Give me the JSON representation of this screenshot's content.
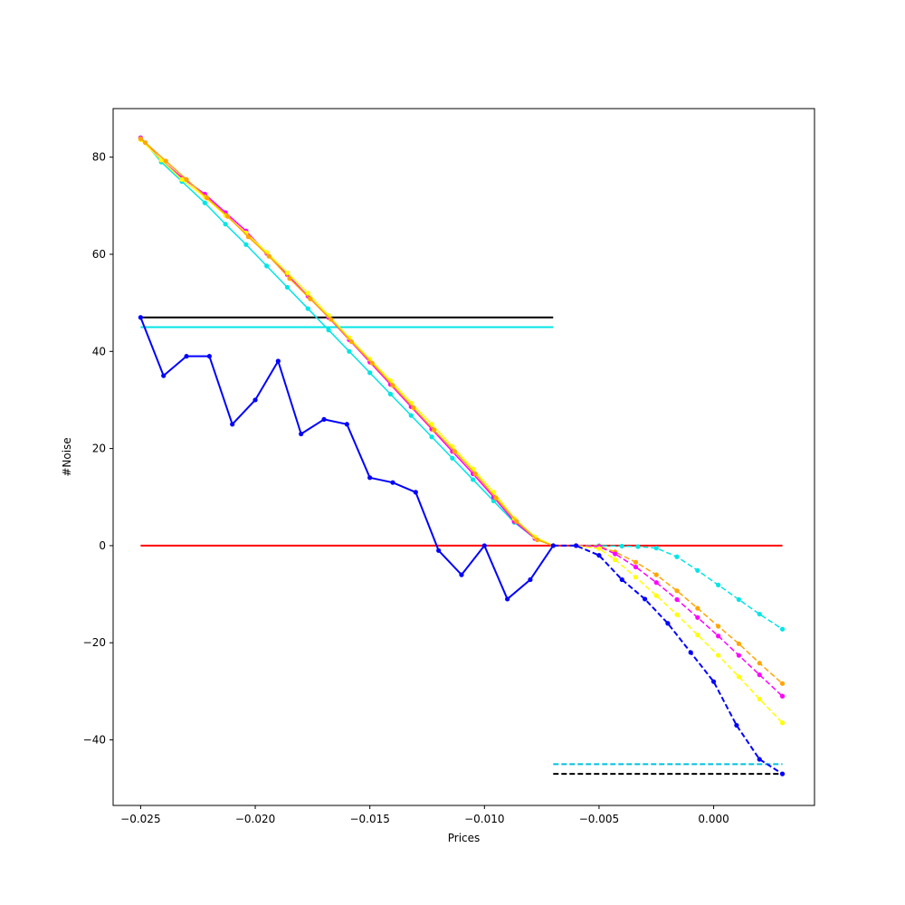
{
  "chart_data": {
    "type": "line",
    "title": "",
    "xlabel": "Prices",
    "ylabel": "#Noise",
    "xlim": [
      -0.0262,
      0.0044
    ],
    "ylim": [
      -53.5,
      90.0
    ],
    "x_ticks": [
      -0.025,
      -0.02,
      -0.015,
      -0.01,
      -0.005,
      0.0
    ],
    "x_tick_labels": [
      "−0.025",
      "−0.020",
      "−0.015",
      "−0.010",
      "−0.005",
      "0.000"
    ],
    "y_ticks": [
      -40,
      -20,
      0,
      20,
      40,
      60,
      80
    ],
    "y_tick_labels": [
      "−40",
      "−20",
      "0",
      "20",
      "40",
      "60",
      "80"
    ],
    "grid": false,
    "legend": "none",
    "series": [
      {
        "color": "#000000",
        "dash": "solid",
        "marker": false,
        "width": 2,
        "x": [
          -0.025,
          -0.007
        ],
        "y": [
          47,
          47
        ]
      },
      {
        "color": "#00e5e5",
        "dash": "solid",
        "marker": false,
        "width": 2,
        "x": [
          -0.025,
          -0.007
        ],
        "y": [
          45,
          45
        ]
      },
      {
        "color": "#ff0000",
        "dash": "solid",
        "marker": false,
        "width": 2,
        "x": [
          -0.025,
          0.003
        ],
        "y": [
          0,
          0
        ]
      },
      {
        "color": "#00c0e0",
        "dash": "dashed",
        "marker": false,
        "width": 2,
        "x": [
          -0.007,
          0.003
        ],
        "y": [
          -45,
          -45
        ]
      },
      {
        "color": "#000000",
        "dash": "dashed",
        "marker": false,
        "width": 2,
        "x": [
          -0.007,
          0.003
        ],
        "y": [
          -47,
          -47
        ]
      },
      {
        "color": "#00e5e5",
        "dash": "solid",
        "marker": true,
        "width": 1.5,
        "x": [
          -0.025,
          -0.0241,
          -0.0232,
          -0.0222,
          -0.0213,
          -0.0204,
          -0.0195,
          -0.0186,
          -0.0177,
          -0.0168,
          -0.0159,
          -0.015,
          -0.0141,
          -0.0132,
          -0.0123,
          -0.0114,
          -0.0105,
          -0.0096,
          -0.0087,
          -0.0078,
          -0.007
        ],
        "y": [
          84,
          79.0,
          75.0,
          70.6,
          66.2,
          62.0,
          57.6,
          53.2,
          48.8,
          44.4,
          40.0,
          35.6,
          31.2,
          26.8,
          22.4,
          18.0,
          13.6,
          9.2,
          4.8,
          1.5,
          0
        ]
      },
      {
        "color": "#ff00ff",
        "dash": "solid",
        "marker": true,
        "width": 1.5,
        "x": [
          -0.025,
          -0.0241,
          -0.0232,
          -0.0222,
          -0.0213,
          -0.0204,
          -0.0195,
          -0.0186,
          -0.0177,
          -0.0168,
          -0.0159,
          -0.015,
          -0.0141,
          -0.0132,
          -0.0123,
          -0.0114,
          -0.0105,
          -0.0096,
          -0.0087,
          -0.0078,
          -0.007
        ],
        "y": [
          84,
          79.4,
          75.8,
          72.4,
          68.6,
          64.8,
          60.2,
          55.8,
          51.4,
          47.0,
          42.4,
          37.8,
          33.2,
          28.6,
          24.0,
          19.4,
          14.8,
          10.0,
          5.0,
          1.5,
          0
        ]
      },
      {
        "color": "#ffff00",
        "dash": "solid",
        "marker": true,
        "width": 1.5,
        "x": [
          -0.025,
          -0.0241,
          -0.0232,
          -0.0222,
          -0.0213,
          -0.0204,
          -0.0195,
          -0.0186,
          -0.0177,
          -0.0168,
          -0.0159,
          -0.015,
          -0.0141,
          -0.0132,
          -0.0123,
          -0.0114,
          -0.0105,
          -0.0096,
          -0.0087,
          -0.0078,
          -0.007
        ],
        "y": [
          83.6,
          79.4,
          75.4,
          71.8,
          68.0,
          64.4,
          60.4,
          56.2,
          52.0,
          47.4,
          42.8,
          38.4,
          34.0,
          29.4,
          25.0,
          20.4,
          15.8,
          11.0,
          5.6,
          1.8,
          0
        ]
      },
      {
        "color": "#ffa500",
        "dash": "solid",
        "marker": true,
        "width": 1.5,
        "x": [
          -0.025,
          -0.0248,
          -0.0239,
          -0.023,
          -0.0221,
          -0.0212,
          -0.0203,
          -0.0194,
          -0.0185,
          -0.0176,
          -0.0167,
          -0.0158,
          -0.0149,
          -0.014,
          -0.0131,
          -0.0122,
          -0.0113,
          -0.0104,
          -0.0095,
          -0.0086,
          -0.0077,
          -0.007
        ],
        "y": [
          83.8,
          83.0,
          79.2,
          75.4,
          71.6,
          67.8,
          63.6,
          59.6,
          55.0,
          50.8,
          46.6,
          42.0,
          37.6,
          33.0,
          28.4,
          23.8,
          19.4,
          14.8,
          9.8,
          5.0,
          1.2,
          0
        ]
      },
      {
        "color": "#0000ff",
        "dash": "solid",
        "marker": true,
        "width": 2,
        "x": [
          -0.025,
          -0.024,
          -0.023,
          -0.022,
          -0.021,
          -0.02,
          -0.019,
          -0.018,
          -0.017,
          -0.016,
          -0.015,
          -0.014,
          -0.013,
          -0.012,
          -0.011,
          -0.01,
          -0.009,
          -0.008,
          -0.007
        ],
        "y": [
          47,
          35,
          39,
          39,
          25,
          30,
          38,
          23,
          26,
          25,
          14,
          13,
          11,
          -1,
          -6,
          0,
          -11,
          -7,
          0
        ]
      },
      {
        "color": "#00e5e5",
        "dash": "dashed",
        "marker": true,
        "width": 1.5,
        "x": [
          -0.007,
          -0.006,
          -0.005,
          -0.004,
          -0.0033,
          -0.0025,
          -0.0016,
          -0.0007,
          0.0002,
          0.0011,
          0.002,
          0.003
        ],
        "y": [
          0,
          0,
          0,
          -0.1,
          -0.2,
          -0.5,
          -2.3,
          -5.1,
          -8.1,
          -11.1,
          -14.1,
          -17.2
        ]
      },
      {
        "color": "#ffa500",
        "dash": "dashed",
        "marker": true,
        "width": 1.5,
        "x": [
          -0.007,
          -0.006,
          -0.005,
          -0.0043,
          -0.0034,
          -0.0025,
          -0.0016,
          -0.0007,
          0.0002,
          0.0011,
          0.002,
          0.003
        ],
        "y": [
          0,
          0,
          -0.1,
          -1.3,
          -3.4,
          -6.0,
          -9.3,
          -12.9,
          -16.6,
          -20.2,
          -24.2,
          -28.4
        ]
      },
      {
        "color": "#ff00ff",
        "dash": "dashed",
        "marker": true,
        "width": 1.5,
        "x": [
          -0.007,
          -0.006,
          -0.005,
          -0.0043,
          -0.0034,
          -0.0025,
          -0.0016,
          -0.0007,
          0.0002,
          0.0011,
          0.002,
          0.003
        ],
        "y": [
          0,
          0,
          -0.2,
          -1.7,
          -4.4,
          -7.6,
          -11.1,
          -14.8,
          -18.6,
          -22.6,
          -26.6,
          -31.0
        ]
      },
      {
        "color": "#ffff00",
        "dash": "dashed",
        "marker": true,
        "width": 1.5,
        "x": [
          -0.007,
          -0.006,
          -0.005,
          -0.0043,
          -0.0034,
          -0.0025,
          -0.0016,
          -0.0007,
          0.0002,
          0.0011,
          0.002,
          0.003
        ],
        "y": [
          0,
          0,
          -0.6,
          -2.9,
          -6.5,
          -10.3,
          -14.2,
          -18.4,
          -22.6,
          -27.0,
          -31.6,
          -36.5
        ]
      },
      {
        "color": "#0000ff",
        "dash": "dashed",
        "marker": true,
        "width": 2,
        "x": [
          -0.007,
          -0.006,
          -0.005,
          -0.004,
          -0.003,
          -0.002,
          -0.001,
          0.0,
          0.001,
          0.002,
          0.003
        ],
        "y": [
          0,
          0,
          -2,
          -7,
          -11,
          -16,
          -22,
          -28,
          -37,
          -44,
          -47
        ]
      }
    ]
  }
}
